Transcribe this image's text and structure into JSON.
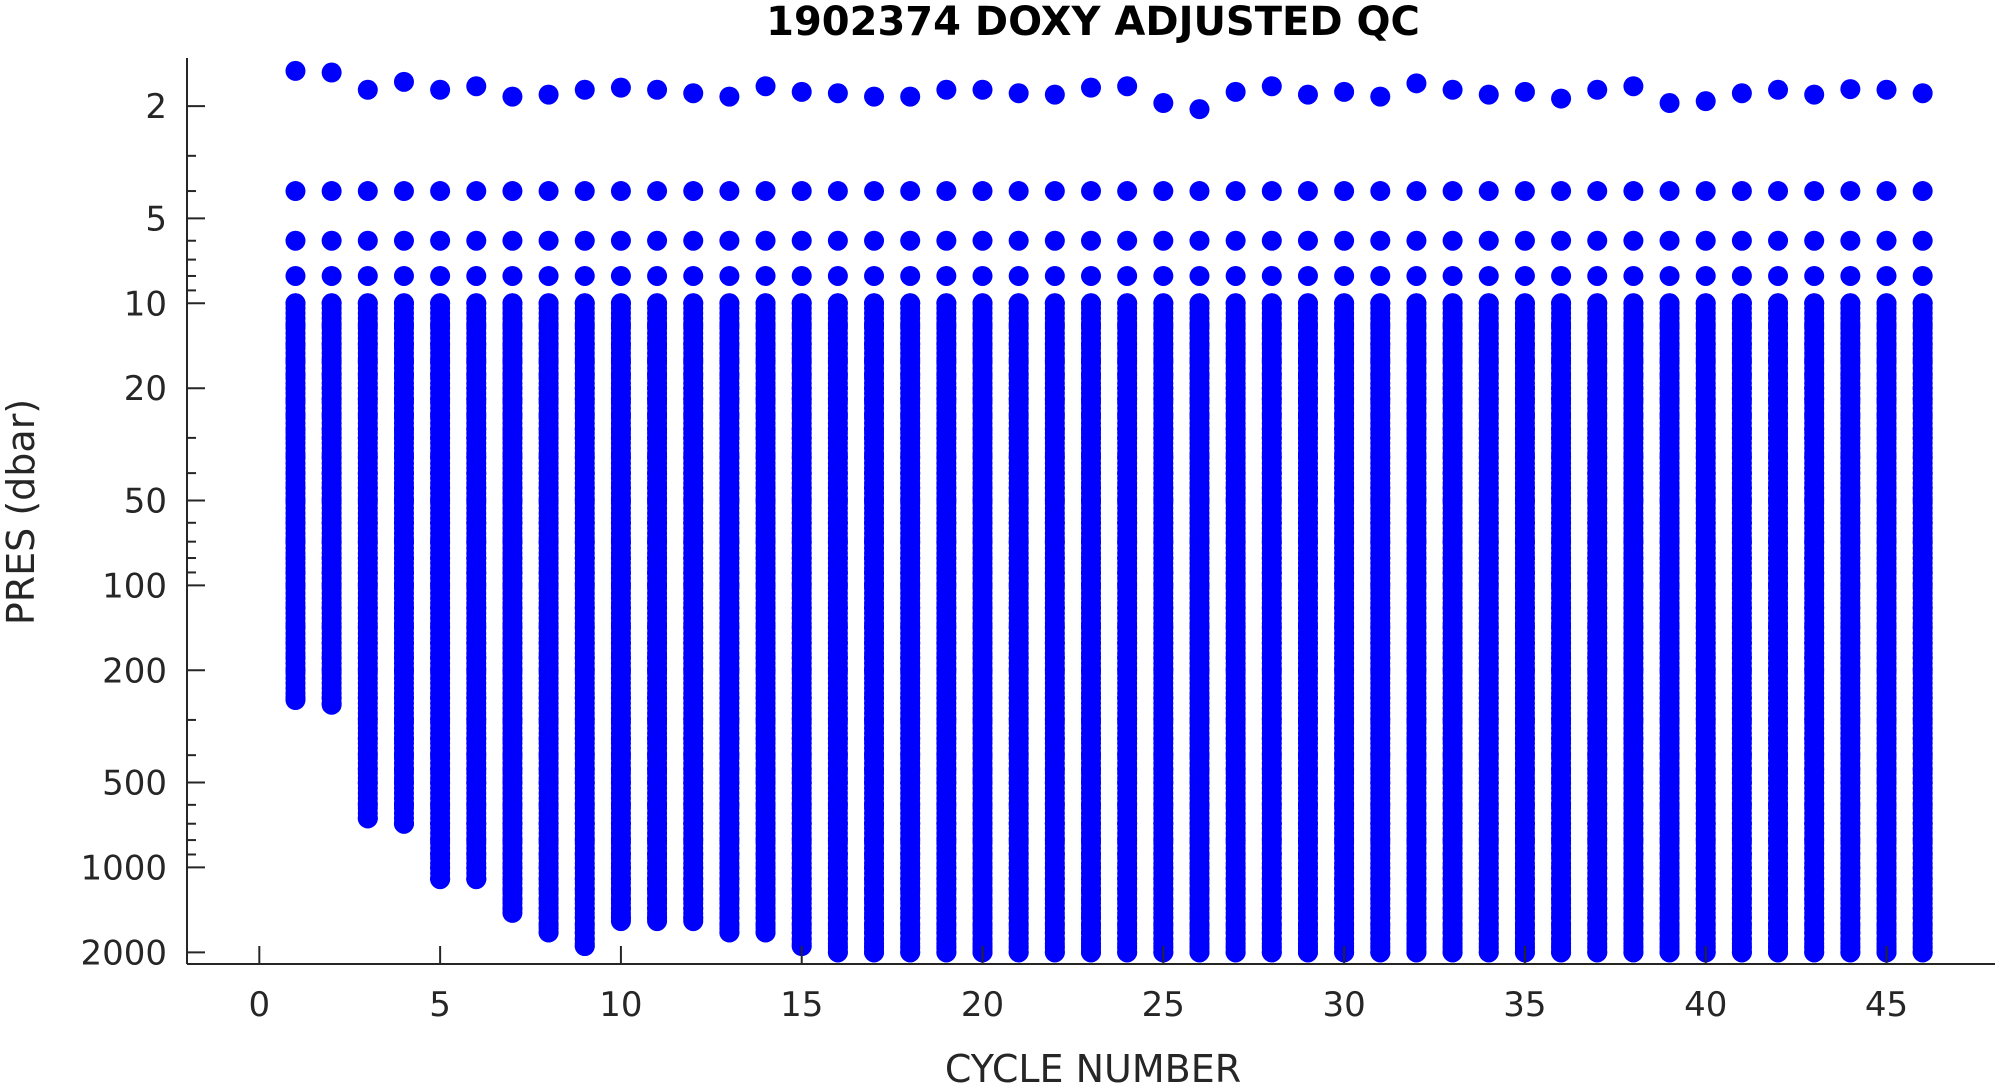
{
  "chart_data": {
    "type": "scatter",
    "title": "1902374  DOXY ADJUSTED QC",
    "xlabel": "CYCLE NUMBER",
    "ylabel": "PRES (dbar)",
    "xlim": [
      -2,
      48
    ],
    "ylim": [
      1.35,
      2200
    ],
    "yscale": "log",
    "yreversed": true,
    "xticks": [
      0,
      5,
      10,
      15,
      20,
      25,
      30,
      35,
      40,
      45
    ],
    "yticks": [
      2,
      5,
      10,
      20,
      50,
      100,
      200,
      500,
      1000,
      2000
    ],
    "marker_color": "#0000ff",
    "series": [
      {
        "x": [
          1,
          2,
          3,
          4,
          5,
          6,
          7,
          8,
          9,
          10,
          11,
          12,
          13,
          14,
          15,
          16,
          17,
          18,
          19,
          20,
          21,
          22,
          23,
          24,
          25,
          26,
          27,
          28,
          29,
          30,
          31,
          32,
          33,
          34,
          35,
          36,
          37,
          38,
          39,
          40,
          41,
          42,
          43,
          44,
          45,
          46
        ],
        "top_pres": [
          1.5,
          1.52,
          1.75,
          1.64,
          1.75,
          1.7,
          1.85,
          1.82,
          1.75,
          1.72,
          1.75,
          1.8,
          1.85,
          1.7,
          1.78,
          1.8,
          1.85,
          1.85,
          1.75,
          1.75,
          1.8,
          1.82,
          1.72,
          1.7,
          1.95,
          2.05,
          1.78,
          1.7,
          1.82,
          1.78,
          1.85,
          1.66,
          1.75,
          1.82,
          1.78,
          1.88,
          1.75,
          1.7,
          1.95,
          1.92,
          1.8,
          1.75,
          1.82,
          1.74,
          1.75,
          1.8
        ],
        "levels_pres": [
          4,
          6,
          8,
          10,
          12,
          14,
          16,
          18,
          20,
          22,
          25,
          28,
          30,
          35,
          40,
          45,
          50,
          60,
          70,
          80,
          90,
          100,
          120,
          140,
          160,
          180,
          200,
          250,
          300,
          350,
          400,
          450,
          500,
          600,
          700,
          800,
          900,
          1000,
          1100,
          1200,
          1300,
          1400,
          1500,
          1600,
          1700,
          1800,
          1900,
          2000
        ],
        "max_pres": [
          255,
          265,
          670,
          700,
          1100,
          1100,
          1450,
          1700,
          1900,
          1550,
          1550,
          1550,
          1700,
          1700,
          1900,
          2000,
          2000,
          2000,
          2000,
          2000,
          2000,
          2000,
          2000,
          2000,
          2000,
          2000,
          2000,
          2000,
          2000,
          2000,
          2000,
          2000,
          2000,
          2000,
          2000,
          2000,
          2000,
          2000,
          2000,
          2000,
          2000,
          2000,
          2000,
          2000,
          2000,
          2000
        ]
      }
    ]
  }
}
